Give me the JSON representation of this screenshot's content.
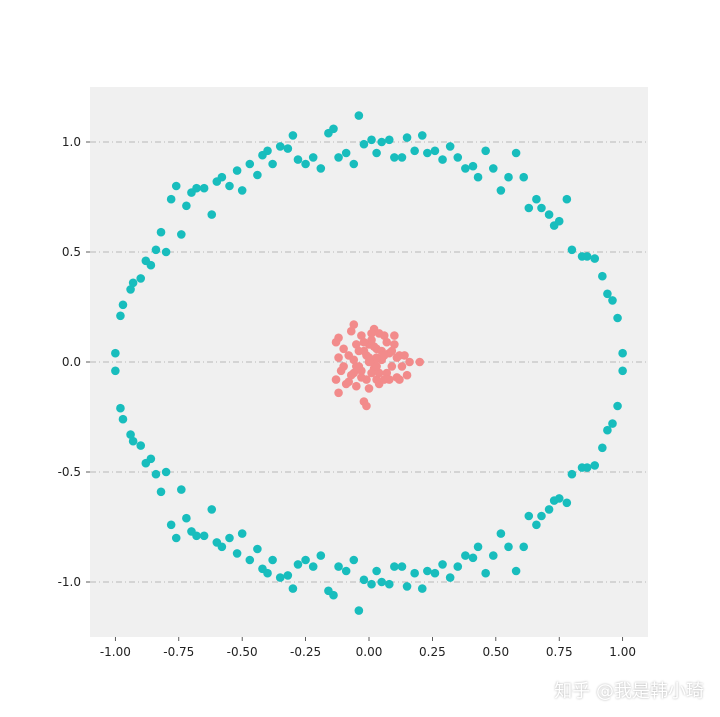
{
  "chart_data": {
    "type": "scatter",
    "xlim": [
      -1.1,
      1.1
    ],
    "ylim": [
      -1.25,
      1.25
    ],
    "xticks": [
      "-1.00",
      "-0.75",
      "-0.50",
      "-0.25",
      "0.00",
      "0.25",
      "0.50",
      "0.75",
      "1.00"
    ],
    "xtick_values": [
      -1.0,
      -0.75,
      -0.5,
      -0.25,
      0.0,
      0.25,
      0.5,
      0.75,
      1.0
    ],
    "yticks": [
      "-1.0",
      "-0.5",
      "0.0",
      "0.5",
      "1.0"
    ],
    "ytick_values": [
      -1.0,
      -0.5,
      0.0,
      0.5,
      1.0
    ],
    "grid": "horizontal dash-dot",
    "colors": {
      "background": "#f0f0f0",
      "grid": "#b8b8b8",
      "outer": "#18bdbd",
      "inner": "#f28b8b"
    },
    "series": [
      {
        "color": "#18bdbd",
        "points": [
          [
            -1.0,
            0.04
          ],
          [
            -1.0,
            -0.04
          ],
          [
            -0.98,
            0.21
          ],
          [
            -0.97,
            0.26
          ],
          [
            -0.94,
            0.33
          ],
          [
            -0.93,
            0.36
          ],
          [
            -0.9,
            0.38
          ],
          [
            -0.88,
            0.46
          ],
          [
            -0.86,
            0.44
          ],
          [
            -0.84,
            0.51
          ],
          [
            -0.82,
            0.59
          ],
          [
            -0.8,
            0.5
          ],
          [
            -0.78,
            0.74
          ],
          [
            -0.76,
            0.8
          ],
          [
            -0.74,
            0.58
          ],
          [
            -0.72,
            0.71
          ],
          [
            -0.7,
            0.77
          ],
          [
            -0.68,
            0.79
          ],
          [
            -0.65,
            0.79
          ],
          [
            -0.62,
            0.67
          ],
          [
            -0.6,
            0.82
          ],
          [
            -0.58,
            0.84
          ],
          [
            -0.55,
            0.8
          ],
          [
            -0.52,
            0.87
          ],
          [
            -0.5,
            0.78
          ],
          [
            -0.47,
            0.9
          ],
          [
            -0.44,
            0.85
          ],
          [
            -0.42,
            0.94
          ],
          [
            -0.4,
            0.96
          ],
          [
            -0.38,
            0.9
          ],
          [
            -0.35,
            0.98
          ],
          [
            -0.32,
            0.97
          ],
          [
            -0.3,
            1.03
          ],
          [
            -0.28,
            0.92
          ],
          [
            -0.25,
            0.9
          ],
          [
            -0.22,
            0.93
          ],
          [
            -0.19,
            0.88
          ],
          [
            -0.16,
            1.04
          ],
          [
            -0.14,
            1.06
          ],
          [
            -0.12,
            0.93
          ],
          [
            -0.09,
            0.95
          ],
          [
            -0.06,
            0.9
          ],
          [
            -0.04,
            1.12
          ],
          [
            -0.02,
            0.99
          ],
          [
            0.01,
            1.01
          ],
          [
            0.03,
            0.95
          ],
          [
            0.05,
            1.0
          ],
          [
            0.08,
            1.01
          ],
          [
            0.1,
            0.93
          ],
          [
            0.13,
            0.93
          ],
          [
            0.15,
            1.02
          ],
          [
            0.18,
            0.96
          ],
          [
            0.21,
            1.03
          ],
          [
            0.23,
            0.95
          ],
          [
            0.26,
            0.96
          ],
          [
            0.29,
            0.92
          ],
          [
            0.32,
            0.98
          ],
          [
            0.35,
            0.93
          ],
          [
            0.38,
            0.88
          ],
          [
            0.41,
            0.89
          ],
          [
            0.43,
            0.84
          ],
          [
            0.46,
            0.96
          ],
          [
            0.49,
            0.88
          ],
          [
            0.52,
            0.78
          ],
          [
            0.55,
            0.84
          ],
          [
            0.58,
            0.95
          ],
          [
            0.61,
            0.84
          ],
          [
            0.63,
            0.7
          ],
          [
            0.66,
            0.74
          ],
          [
            0.68,
            0.7
          ],
          [
            0.71,
            0.67
          ],
          [
            0.73,
            0.62
          ],
          [
            0.75,
            0.64
          ],
          [
            0.78,
            0.74
          ],
          [
            0.8,
            0.51
          ],
          [
            0.84,
            0.48
          ],
          [
            0.86,
            0.48
          ],
          [
            0.89,
            0.47
          ],
          [
            0.92,
            0.39
          ],
          [
            0.94,
            0.31
          ],
          [
            0.96,
            0.28
          ],
          [
            0.98,
            0.2
          ],
          [
            1.0,
            0.04
          ],
          [
            1.0,
            -0.04
          ],
          [
            0.98,
            -0.2
          ],
          [
            0.96,
            -0.28
          ],
          [
            0.94,
            -0.31
          ],
          [
            0.92,
            -0.39
          ],
          [
            0.89,
            -0.47
          ],
          [
            0.86,
            -0.48
          ],
          [
            0.84,
            -0.48
          ],
          [
            0.8,
            -0.51
          ],
          [
            0.78,
            -0.64
          ],
          [
            0.75,
            -0.62
          ],
          [
            0.73,
            -0.63
          ],
          [
            0.71,
            -0.67
          ],
          [
            0.68,
            -0.7
          ],
          [
            0.66,
            -0.74
          ],
          [
            0.63,
            -0.7
          ],
          [
            0.61,
            -0.84
          ],
          [
            0.58,
            -0.95
          ],
          [
            0.55,
            -0.84
          ],
          [
            0.52,
            -0.78
          ],
          [
            0.49,
            -0.88
          ],
          [
            0.46,
            -0.96
          ],
          [
            0.43,
            -0.84
          ],
          [
            0.41,
            -0.89
          ],
          [
            0.38,
            -0.88
          ],
          [
            0.35,
            -0.93
          ],
          [
            0.32,
            -0.98
          ],
          [
            0.29,
            -0.92
          ],
          [
            0.26,
            -0.96
          ],
          [
            0.23,
            -0.95
          ],
          [
            0.21,
            -1.03
          ],
          [
            0.18,
            -0.96
          ],
          [
            0.15,
            -1.02
          ],
          [
            0.13,
            -0.93
          ],
          [
            0.1,
            -0.93
          ],
          [
            0.08,
            -1.01
          ],
          [
            0.05,
            -1.0
          ],
          [
            0.03,
            -0.95
          ],
          [
            0.01,
            -1.01
          ],
          [
            -0.02,
            -0.99
          ],
          [
            -0.04,
            -1.13
          ],
          [
            -0.06,
            -0.9
          ],
          [
            -0.09,
            -0.95
          ],
          [
            -0.12,
            -0.93
          ],
          [
            -0.14,
            -1.06
          ],
          [
            -0.16,
            -1.04
          ],
          [
            -0.19,
            -0.88
          ],
          [
            -0.22,
            -0.93
          ],
          [
            -0.25,
            -0.9
          ],
          [
            -0.28,
            -0.92
          ],
          [
            -0.3,
            -1.03
          ],
          [
            -0.32,
            -0.97
          ],
          [
            -0.35,
            -0.98
          ],
          [
            -0.38,
            -0.9
          ],
          [
            -0.4,
            -0.96
          ],
          [
            -0.42,
            -0.94
          ],
          [
            -0.44,
            -0.85
          ],
          [
            -0.47,
            -0.9
          ],
          [
            -0.5,
            -0.78
          ],
          [
            -0.52,
            -0.87
          ],
          [
            -0.55,
            -0.8
          ],
          [
            -0.58,
            -0.84
          ],
          [
            -0.6,
            -0.82
          ],
          [
            -0.62,
            -0.67
          ],
          [
            -0.65,
            -0.79
          ],
          [
            -0.68,
            -0.79
          ],
          [
            -0.7,
            -0.77
          ],
          [
            -0.72,
            -0.71
          ],
          [
            -0.74,
            -0.58
          ],
          [
            -0.76,
            -0.8
          ],
          [
            -0.78,
            -0.74
          ],
          [
            -0.8,
            -0.5
          ],
          [
            -0.82,
            -0.59
          ],
          [
            -0.84,
            -0.51
          ],
          [
            -0.86,
            -0.44
          ],
          [
            -0.88,
            -0.46
          ],
          [
            -0.9,
            -0.38
          ],
          [
            -0.93,
            -0.36
          ],
          [
            -0.94,
            -0.33
          ],
          [
            -0.97,
            -0.26
          ],
          [
            -0.98,
            -0.21
          ]
        ]
      },
      {
        "color": "#f28b8b",
        "points": [
          [
            -0.08,
            0.03
          ],
          [
            -0.06,
            -0.05
          ],
          [
            -0.05,
            0.08
          ],
          [
            -0.04,
            -0.02
          ],
          [
            -0.03,
            0.12
          ],
          [
            -0.02,
            0.05
          ],
          [
            -0.01,
            -0.08
          ],
          [
            0.0,
            0.02
          ],
          [
            0.01,
            0.1
          ],
          [
            0.02,
            -0.03
          ],
          [
            0.03,
            0.06
          ],
          [
            0.04,
            -0.1
          ],
          [
            0.05,
            0.01
          ],
          [
            0.06,
            0.12
          ],
          [
            0.07,
            -0.05
          ],
          [
            0.08,
            0.04
          ],
          [
            0.09,
            -0.02
          ],
          [
            0.1,
            0.08
          ],
          [
            0.11,
            -0.07
          ],
          [
            0.12,
            0.03
          ],
          [
            -0.1,
            0.06
          ],
          [
            -0.11,
            -0.04
          ],
          [
            -0.09,
            -0.1
          ],
          [
            -0.07,
            0.14
          ],
          [
            -0.12,
            0.02
          ],
          [
            -0.13,
            -0.08
          ],
          [
            -0.06,
            0.17
          ],
          [
            0.02,
            0.15
          ],
          [
            0.04,
            0.13
          ],
          [
            0.1,
            0.12
          ],
          [
            0.13,
            -0.02
          ],
          [
            0.14,
            0.03
          ],
          [
            0.15,
            -0.06
          ],
          [
            0.16,
            0.0
          ],
          [
            0.2,
            0.0
          ],
          [
            0.12,
            -0.08
          ],
          [
            0.06,
            -0.08
          ],
          [
            0.03,
            -0.08
          ],
          [
            -0.02,
            -0.18
          ],
          [
            -0.01,
            -0.2
          ],
          [
            -0.05,
            -0.11
          ],
          [
            -0.08,
            -0.09
          ],
          [
            -0.12,
            -0.14
          ],
          [
            -0.13,
            0.09
          ],
          [
            -0.12,
            0.11
          ],
          [
            0.0,
            0.08
          ],
          [
            -0.03,
            -0.04
          ],
          [
            0.02,
            0.0
          ],
          [
            0.05,
            0.05
          ],
          [
            -0.01,
            0.03
          ],
          [
            0.01,
            -0.05
          ],
          [
            0.03,
            0.02
          ],
          [
            -0.04,
            0.05
          ],
          [
            0.07,
            0.09
          ],
          [
            0.09,
            0.05
          ],
          [
            -0.06,
            0.01
          ],
          [
            0.0,
            -0.12
          ],
          [
            0.04,
            -0.05
          ],
          [
            -0.02,
            0.09
          ],
          [
            0.01,
            0.13
          ],
          [
            -0.1,
            -0.02
          ],
          [
            0.11,
            0.02
          ],
          [
            -0.07,
            -0.06
          ],
          [
            0.08,
            -0.08
          ],
          [
            0.06,
            0.03
          ],
          [
            -0.03,
            -0.07
          ],
          [
            0.02,
            0.07
          ],
          [
            -0.05,
            -0.02
          ],
          [
            0.0,
            0.0
          ],
          [
            0.03,
            -0.02
          ]
        ]
      }
    ]
  },
  "watermark": "知乎 @我是韩小琦"
}
